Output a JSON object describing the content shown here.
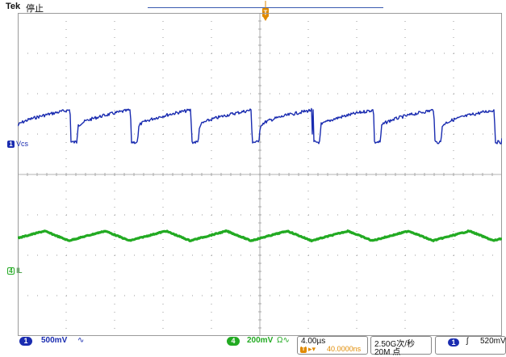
{
  "header": {
    "brand": "Tek",
    "run_state": "停止",
    "trigger_marker": "T"
  },
  "channels": {
    "ch1": {
      "number": "1",
      "name": "Vcs",
      "color": "#1a2cb0"
    },
    "ch4": {
      "number": "4",
      "name": "IL",
      "color": "#22aa22"
    }
  },
  "status": {
    "ch1_scale": "500mV",
    "ch1_coupling": "∿",
    "ch4_scale": "200mV",
    "ch4_coupling": "Ω∿",
    "timebase": "4.00µs",
    "trigger_delay_icon": "T",
    "trigger_delay": "40.0000ns",
    "sample_rate": "2.50G次/秒",
    "record_length": "20M 点",
    "trigger_source": "1",
    "trigger_slope": "ʃ",
    "trigger_level": "520mV"
  },
  "colors": {
    "grid": "#9a9a9a",
    "ch1_trace": "#1a2cb0",
    "ch4_trace": "#22aa22",
    "accent": "#e08a00"
  }
}
